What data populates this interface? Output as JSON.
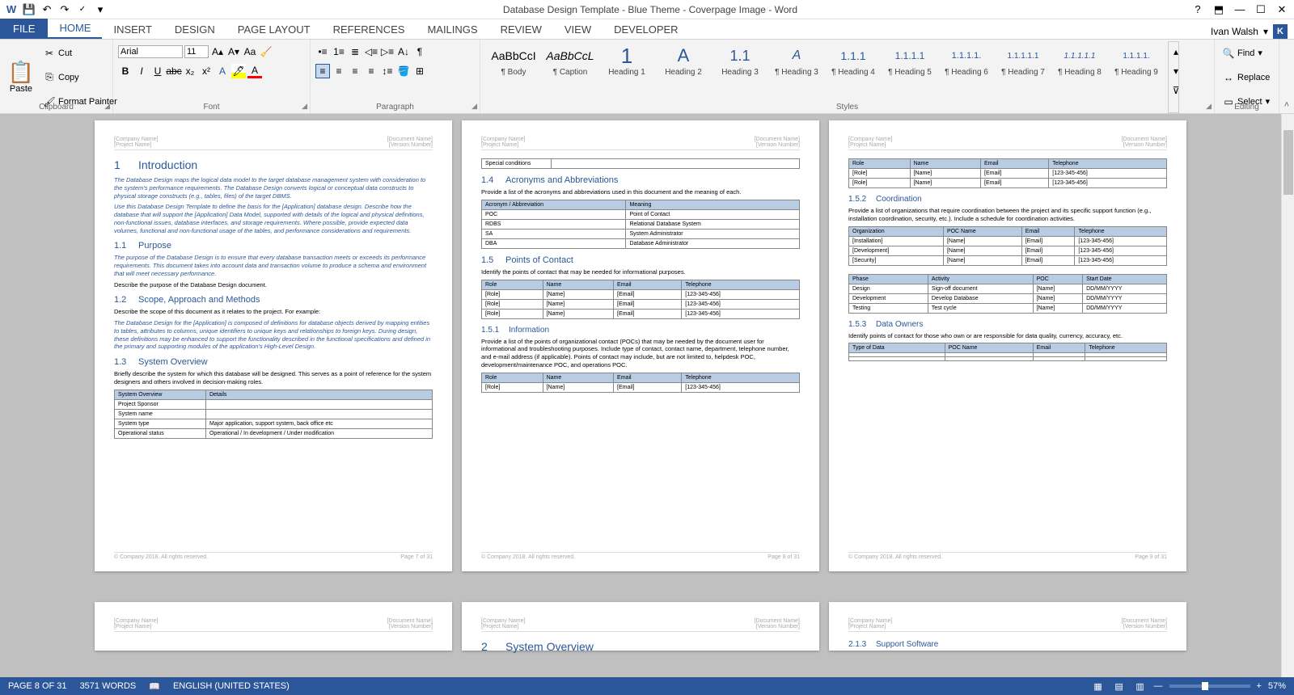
{
  "title": "Database Design Template - Blue Theme - Coverpage Image - Word",
  "user": {
    "name": "Ivan Walsh",
    "initial": "K"
  },
  "tabs": {
    "file": "FILE",
    "home": "HOME",
    "insert": "INSERT",
    "design": "DESIGN",
    "pagelayout": "PAGE LAYOUT",
    "references": "REFERENCES",
    "mailings": "MAILINGS",
    "review": "REVIEW",
    "view": "VIEW",
    "developer": "DEVELOPER"
  },
  "ribbon": {
    "clipboard": {
      "label": "Clipboard",
      "paste": "Paste",
      "cut": "Cut",
      "copy": "Copy",
      "fmtpainter": "Format Painter"
    },
    "font": {
      "label": "Font",
      "name": "Arial",
      "size": "11"
    },
    "paragraph": {
      "label": "Paragraph"
    },
    "styles": {
      "label": "Styles",
      "items": [
        {
          "preview": "AaBbCcI",
          "name": "¶ Body",
          "color": "#000"
        },
        {
          "preview": "AaBbCcL",
          "name": "¶ Caption",
          "color": "#000",
          "italic": true
        },
        {
          "preview": "1",
          "name": "Heading 1",
          "size": "26px"
        },
        {
          "preview": "A",
          "name": "Heading 2",
          "size": "22px"
        },
        {
          "preview": "1.1",
          "name": "Heading 3",
          "size": "18px"
        },
        {
          "preview": "A",
          "name": "¶ Heading 3",
          "size": "16px",
          "italic": true
        },
        {
          "preview": "1.1.1",
          "name": "¶ Heading 4",
          "size": "14px"
        },
        {
          "preview": "1.1.1.1",
          "name": "¶ Heading 5",
          "size": "12px"
        },
        {
          "preview": "1.1.1.1.",
          "name": "¶ Heading 6",
          "size": "11px"
        },
        {
          "preview": "1.1.1.1.1",
          "name": "¶ Heading 7",
          "size": "10px"
        },
        {
          "preview": "1.1.1.1.1",
          "name": "¶ Heading 8",
          "size": "10px",
          "italic": true
        },
        {
          "preview": "1.1.1.1.",
          "name": "¶ Heading 9",
          "size": "10px"
        }
      ]
    },
    "editing": {
      "label": "Editing",
      "find": "Find",
      "replace": "Replace",
      "select": "Select"
    }
  },
  "doc": {
    "hdr": {
      "company": "[Company Name]",
      "project": "[Project Name]",
      "docname": "[Document Name]",
      "version": "[Version Number]"
    },
    "ftr": {
      "copy": "© Company 2018. All rights reserved."
    },
    "p1": {
      "h1": "Introduction",
      "h1n": "1",
      "ital1": "The Database Design maps the logical data model to the target database management system with consideration to the system's performance requirements. The Database Design converts logical or conceptual data constructs to physical storage constructs (e.g., tables, files) of the target DBMS.",
      "ital2": "Use this Database Design Template to define the basis for the [Application] database design. Describe how the database that will support the [Application] Data Model, supported with details of the logical and physical definitions, non-functional issues, database interfaces, and storage requirements. Where possible, provide expected data volumes, functional and non-functional usage of the tables, and performance considerations and requirements.",
      "h2a": "Purpose",
      "h2an": "1.1",
      "ital3": "The purpose of the Database Design is to ensure that every database transaction meets or exceeds its performance requirements. This document takes into account data and transaction volume to produce a schema and environment that will meet necessary performance.",
      "body1": "Describe the purpose of the Database Design document.",
      "h2b": "Scope, Approach and Methods",
      "h2bn": "1.2",
      "body2": "Describe the scope of this document as it relates to the project. For example:",
      "ital4": "The Database Design for the [Application] is composed of definitions for database objects derived by mapping entities to tables, attributes to columns, unique identifiers to unique keys and relationships to foreign keys. During design, these definitions may be enhanced to support the functionality described in the functional specifications and defined in the primary and supporting modules of the application's High-Level Design.",
      "h2c": "System Overview",
      "h2cn": "1.3",
      "body3": "Briefly describe the system for which this database will be designed. This serves as a point of reference for the system designers and others involved in decision-making roles.",
      "tbl1": {
        "h": [
          "System Overview",
          "Details"
        ],
        "r": [
          [
            "Project Sponsor",
            ""
          ],
          [
            "System name",
            ""
          ],
          [
            "System type",
            "Major application, support system, back office etc"
          ],
          [
            "Operational status",
            "Operational / In development / Under modification"
          ]
        ]
      },
      "pgno": "Page 7 of 31"
    },
    "p2": {
      "spcond": "Special conditions",
      "h2a": "Acronyms and Abbreviations",
      "h2an": "1.4",
      "body1": "Provide a list of the acronyms and abbreviations used in this document and the meaning of each.",
      "tbl1": {
        "h": [
          "Acronym / Abbreviation",
          "Meaning"
        ],
        "r": [
          [
            "POC",
            "Point of Contact"
          ],
          [
            "RDBS",
            "Relational Database System"
          ],
          [
            "SA",
            "System Administrator"
          ],
          [
            "DBA",
            "Database Administrator"
          ]
        ]
      },
      "h2b": "Points of Contact",
      "h2bn": "1.5",
      "body2": "Identify the points of contact that may be needed for informational purposes.",
      "tbl2": {
        "h": [
          "Role",
          "Name",
          "Email",
          "Telephone"
        ],
        "r": [
          [
            "[Role]",
            "[Name]",
            "[Email]",
            "[123-345-456]"
          ],
          [
            "[Role]",
            "[Name]",
            "[Email]",
            "[123-345-456]"
          ],
          [
            "[Role]",
            "[Name]",
            "[Email]",
            "[123-345-456]"
          ]
        ]
      },
      "h3a": "Information",
      "h3an": "1.5.1",
      "body3": "Provide a list of the points of organizational contact (POCs) that may be needed by the document user for informational and troubleshooting purposes.  Include type of contact, contact name, department, telephone number, and e-mail address (if applicable).  Points of contact may include, but are not limited to, helpdesk POC, development/maintenance POC, and operations POC.",
      "tbl3": {
        "h": [
          "Role",
          "Name",
          "Email",
          "Telephone"
        ],
        "r": [
          [
            "[Role]",
            "[Name]",
            "[Email]",
            "[123-345-456]"
          ]
        ]
      },
      "pgno": "Page 8 of 31"
    },
    "p3": {
      "tbl0": {
        "h": [
          "Role",
          "Name",
          "Email",
          "Telephone"
        ],
        "r": [
          [
            "[Role]",
            "[Name]",
            "[Email]",
            "[123-345-456]"
          ],
          [
            "[Role]",
            "[Name]",
            "[Email]",
            "[123-345-456]"
          ]
        ]
      },
      "h3a": "Coordination",
      "h3an": "1.5.2",
      "body1": "Provide a list of organizations that require coordination between the project and its specific support function (e.g., installation coordination, security, etc.).  Include a schedule for coordination activities.",
      "tbl1": {
        "h": [
          "Organization",
          "POC Name",
          "Email",
          "Telephone"
        ],
        "r": [
          [
            "[Installation]",
            "[Name]",
            "[Email]",
            "[123-345-456]"
          ],
          [
            "[Development]",
            "[Name]",
            "[Email]",
            "[123-345-456]"
          ],
          [
            "[Security]",
            "[Name]",
            "[Email]",
            "[123-345-456]"
          ]
        ]
      },
      "tbl2": {
        "h": [
          "Phase",
          "Activity",
          "POC",
          "Start Date"
        ],
        "r": [
          [
            "Design",
            "Sign-off document",
            "[Name]",
            "DD/MM/YYYY"
          ],
          [
            "Development",
            "Develop Database",
            "[Name]",
            "DD/MM/YYYY"
          ],
          [
            "Testing",
            "Test cycle",
            "[Name]",
            "DD/MM/YYYY"
          ]
        ]
      },
      "h3b": "Data Owners",
      "h3bn": "1.5.3",
      "body2": "Identify points of contact for those who own or are responsible for data quality, currency, accuracy, etc.",
      "tbl3": {
        "h": [
          "Type of Data",
          "POC Name",
          "Email",
          "Telephone"
        ],
        "r": [
          [
            "",
            "",
            "",
            ""
          ],
          [
            "",
            "",
            "",
            ""
          ]
        ]
      },
      "pgno": "Page 9 of 31"
    },
    "p5": {
      "h1": "System Overview",
      "h1n": "2"
    },
    "p6": {
      "h3": "Support Software",
      "h3n": "2.1.3"
    }
  },
  "status": {
    "page": "PAGE 8 OF 31",
    "words": "3571 WORDS",
    "lang": "ENGLISH (UNITED STATES)",
    "zoom": "57%"
  }
}
